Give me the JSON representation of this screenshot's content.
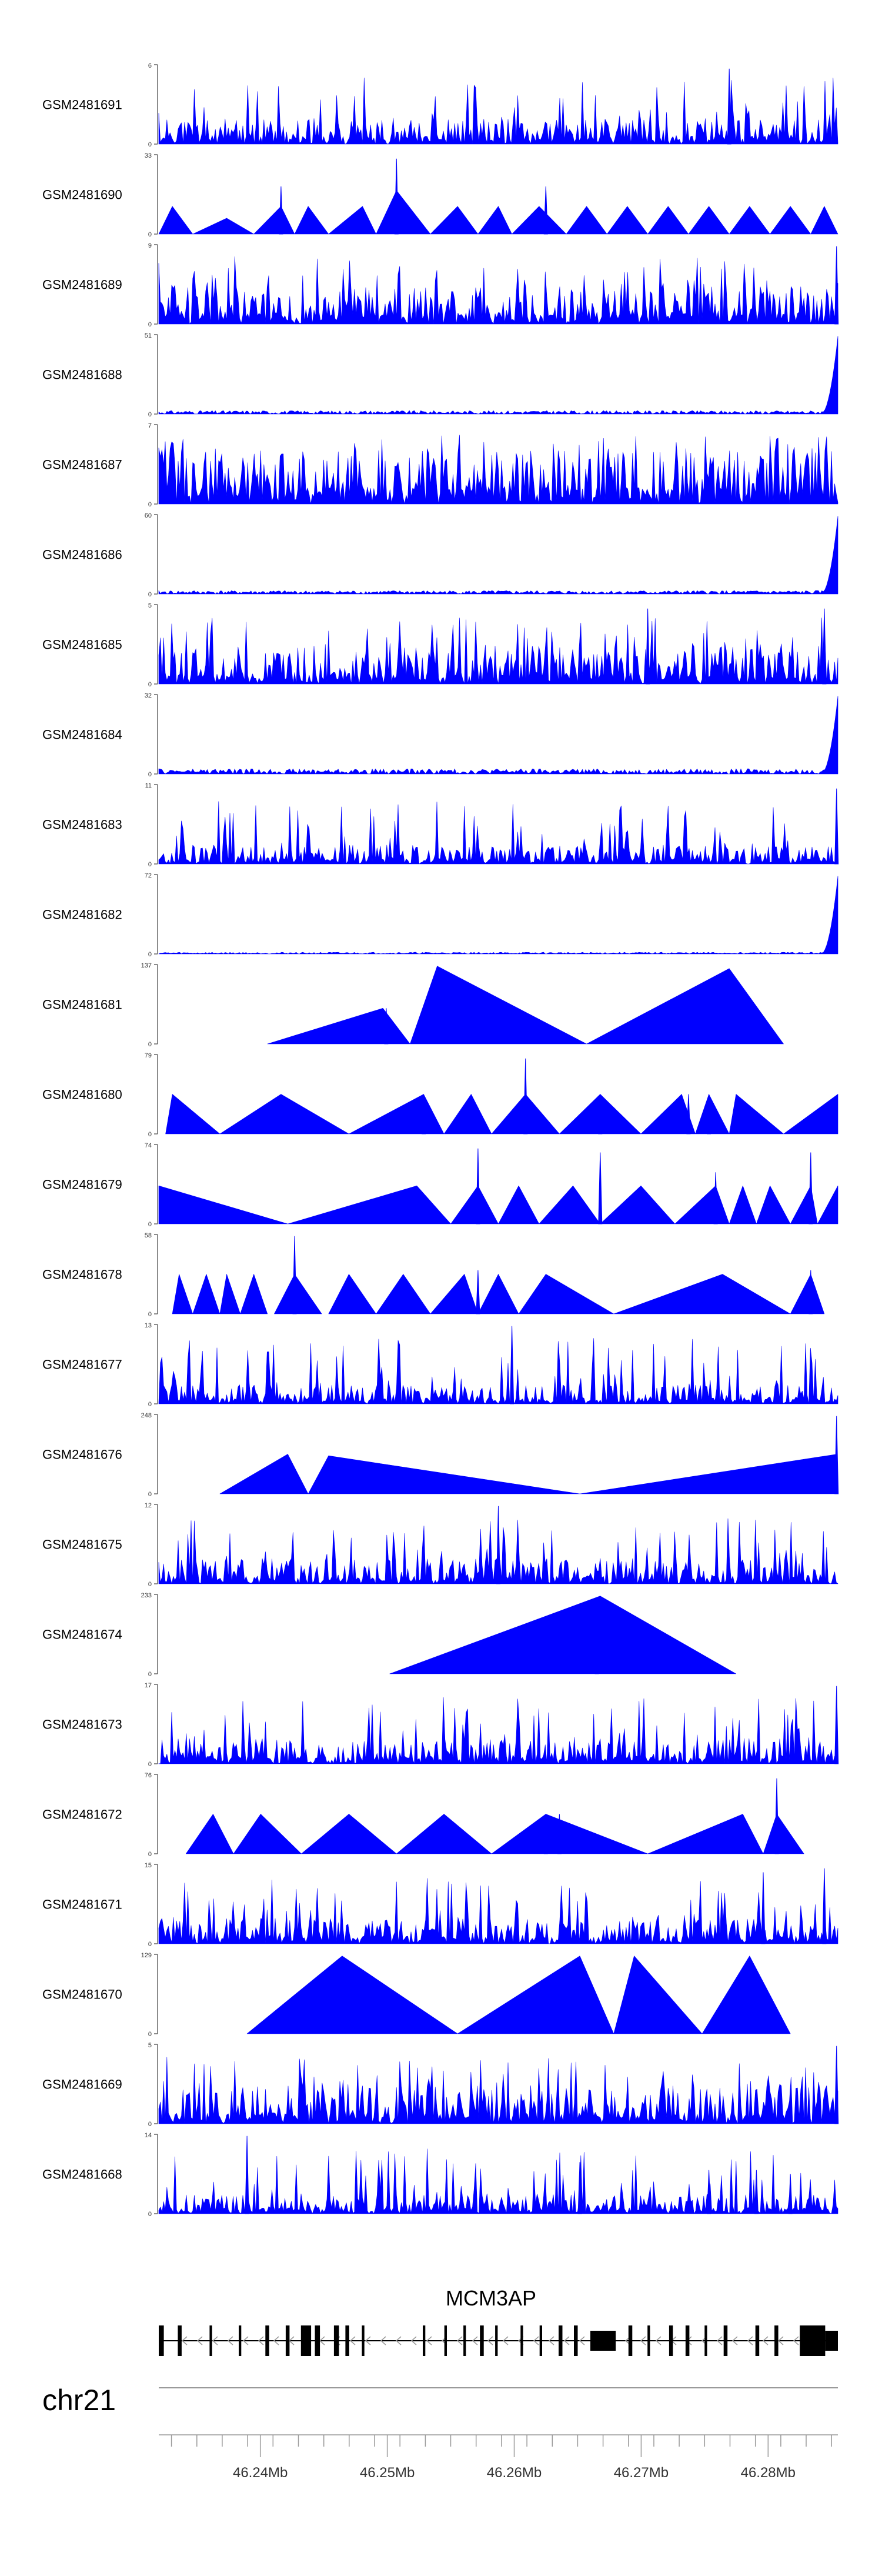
{
  "chart_data": {
    "type": "area",
    "title": "",
    "chromosome": "chr21",
    "gene": "MCM3AP",
    "x_range_mb": [
      46.232,
      46.2855
    ],
    "x_ticks": [
      {
        "value": 46.24,
        "label": "46.24Mb"
      },
      {
        "value": 46.25,
        "label": "46.25Mb"
      },
      {
        "value": 46.26,
        "label": "46.26Mb"
      },
      {
        "value": 46.27,
        "label": "46.27Mb"
      },
      {
        "value": 46.28,
        "label": "46.28Mb"
      }
    ],
    "fill_color": "#0000ff",
    "tracks": [
      {
        "name": "GSM2481691",
        "ymax": "6",
        "ymin": "0",
        "pattern": "noise",
        "mean": 0.2,
        "seed": 11,
        "spikes": [
          [
            0.84,
            0.95
          ]
        ]
      },
      {
        "name": "GSM2481690",
        "ymax": "33",
        "ymin": "0",
        "pattern": "tri",
        "peaks": [
          [
            0.0,
            0.02,
            0.05,
            0.35
          ],
          [
            0.05,
            0.1,
            0.14,
            0.2
          ],
          [
            0.14,
            0.18,
            0.2,
            0.35
          ],
          [
            0.2,
            0.22,
            0.25,
            0.35
          ],
          [
            0.25,
            0.3,
            0.32,
            0.35
          ],
          [
            0.32,
            0.35,
            0.4,
            0.55
          ],
          [
            0.4,
            0.44,
            0.47,
            0.35
          ],
          [
            0.47,
            0.5,
            0.52,
            0.35
          ],
          [
            0.52,
            0.56,
            0.6,
            0.35
          ],
          [
            0.6,
            0.63,
            0.66,
            0.35
          ],
          [
            0.66,
            0.69,
            0.72,
            0.35
          ],
          [
            0.72,
            0.75,
            0.78,
            0.35
          ],
          [
            0.78,
            0.81,
            0.84,
            0.35
          ],
          [
            0.84,
            0.87,
            0.9,
            0.35
          ],
          [
            0.9,
            0.93,
            0.96,
            0.35
          ],
          [
            0.96,
            0.98,
            1.0,
            0.35
          ]
        ],
        "spikes": [
          [
            0.18,
            0.6
          ],
          [
            0.35,
            0.95
          ],
          [
            0.57,
            0.6
          ]
        ]
      },
      {
        "name": "GSM2481689",
        "ymax": "9",
        "ymin": "0",
        "pattern": "noise",
        "mean": 0.3,
        "seed": 23,
        "spikes": [
          [
            0.998,
            0.98
          ]
        ]
      },
      {
        "name": "GSM2481688",
        "ymax": "51",
        "ymin": "0",
        "pattern": "ramp",
        "mean": 0.02,
        "seed": 31
      },
      {
        "name": "GSM2481687",
        "ymax": "7",
        "ymin": "0",
        "pattern": "noise",
        "mean": 0.45,
        "seed": 37,
        "spikes": []
      },
      {
        "name": "GSM2481686",
        "ymax": "60",
        "ymin": "0",
        "pattern": "ramp",
        "mean": 0.02,
        "seed": 41
      },
      {
        "name": "GSM2481685",
        "ymax": "5",
        "ymin": "0",
        "pattern": "noise",
        "mean": 0.3,
        "seed": 43,
        "spikes": [
          [
            0.72,
            0.95
          ],
          [
            0.98,
            0.95
          ]
        ]
      },
      {
        "name": "GSM2481684",
        "ymax": "32",
        "ymin": "0",
        "pattern": "ramp",
        "mean": 0.03,
        "seed": 47
      },
      {
        "name": "GSM2481683",
        "ymax": "11",
        "ymin": "0",
        "pattern": "noise",
        "mean": 0.15,
        "seed": 53,
        "spikes": [
          [
            0.998,
            0.95
          ]
        ]
      },
      {
        "name": "GSM2481682",
        "ymax": "72",
        "ymin": "0",
        "pattern": "ramp",
        "mean": 0.01,
        "seed": 59
      },
      {
        "name": "GSM2481681",
        "ymax": "137",
        "ymin": "0",
        "pattern": "tri",
        "peaks": [
          [
            0.16,
            0.33,
            0.37,
            0.45
          ],
          [
            0.37,
            0.41,
            0.63,
            0.98
          ],
          [
            0.63,
            0.84,
            0.92,
            0.95
          ]
        ],
        "spikes": [
          [
            0.335,
            0.45
          ]
        ]
      },
      {
        "name": "GSM2481680",
        "ymax": "79",
        "ymin": "0",
        "pattern": "tri",
        "peaks": [
          [
            0.01,
            0.02,
            0.09,
            0.5
          ],
          [
            0.09,
            0.18,
            0.28,
            0.5
          ],
          [
            0.28,
            0.39,
            0.42,
            0.5
          ],
          [
            0.42,
            0.46,
            0.49,
            0.5
          ],
          [
            0.49,
            0.54,
            0.59,
            0.5
          ],
          [
            0.59,
            0.65,
            0.71,
            0.5
          ],
          [
            0.71,
            0.77,
            0.79,
            0.5
          ],
          [
            0.79,
            0.81,
            0.84,
            0.5
          ],
          [
            0.84,
            0.85,
            0.92,
            0.5
          ],
          [
            0.92,
            1.0,
            1.0,
            0.5
          ]
        ],
        "spikes": [
          [
            0.39,
            0.45
          ],
          [
            0.54,
            0.95
          ],
          [
            0.65,
            0.45
          ],
          [
            0.78,
            0.5
          ],
          [
            0.81,
            0.5
          ]
        ]
      },
      {
        "name": "GSM2481679",
        "ymax": "74",
        "ymin": "0",
        "pattern": "tri",
        "peaks": [
          [
            0.0,
            0.0,
            0.19,
            0.48
          ],
          [
            0.19,
            0.38,
            0.43,
            0.48
          ],
          [
            0.43,
            0.47,
            0.5,
            0.48
          ],
          [
            0.5,
            0.53,
            0.56,
            0.48
          ],
          [
            0.56,
            0.61,
            0.65,
            0.48
          ],
          [
            0.65,
            0.71,
            0.76,
            0.48
          ],
          [
            0.76,
            0.82,
            0.84,
            0.48
          ],
          [
            0.84,
            0.86,
            0.88,
            0.48
          ],
          [
            0.88,
            0.9,
            0.93,
            0.48
          ],
          [
            0.93,
            0.96,
            0.97,
            0.48
          ],
          [
            0.97,
            1.0,
            1.0,
            0.48
          ]
        ],
        "spikes": [
          [
            0.47,
            0.95
          ],
          [
            0.65,
            0.9
          ],
          [
            0.82,
            0.65
          ],
          [
            0.96,
            0.9
          ]
        ]
      },
      {
        "name": "GSM2481678",
        "ymax": "58",
        "ymin": "0",
        "pattern": "tri",
        "peaks": [
          [
            0.02,
            0.03,
            0.05,
            0.5
          ],
          [
            0.05,
            0.07,
            0.09,
            0.5
          ],
          [
            0.09,
            0.1,
            0.12,
            0.5
          ],
          [
            0.12,
            0.14,
            0.16,
            0.5
          ],
          [
            0.17,
            0.2,
            0.24,
            0.5
          ],
          [
            0.25,
            0.28,
            0.32,
            0.5
          ],
          [
            0.32,
            0.36,
            0.4,
            0.5
          ],
          [
            0.4,
            0.45,
            0.47,
            0.5
          ],
          [
            0.47,
            0.5,
            0.53,
            0.5
          ],
          [
            0.53,
            0.57,
            0.67,
            0.5
          ],
          [
            0.67,
            0.83,
            0.93,
            0.5
          ],
          [
            0.93,
            0.96,
            0.98,
            0.5
          ]
        ],
        "spikes": [
          [
            0.2,
            0.98
          ],
          [
            0.47,
            0.55
          ],
          [
            0.96,
            0.55
          ]
        ]
      },
      {
        "name": "GSM2481677",
        "ymax": "13",
        "ymin": "0",
        "pattern": "noise",
        "mean": 0.15,
        "seed": 61,
        "spikes": [
          [
            0.52,
            0.98
          ]
        ]
      },
      {
        "name": "GSM2481676",
        "ymax": "248",
        "ymin": "0",
        "pattern": "tri",
        "peaks": [
          [
            0.09,
            0.19,
            0.22,
            0.5
          ],
          [
            0.22,
            0.25,
            0.62,
            0.48
          ],
          [
            0.62,
            0.999,
            1.0,
            0.5
          ]
        ],
        "spikes": [
          [
            0.998,
            0.98
          ]
        ]
      },
      {
        "name": "GSM2481675",
        "ymax": "12",
        "ymin": "0",
        "pattern": "noise",
        "mean": 0.2,
        "seed": 67,
        "spikes": [
          [
            0.5,
            0.98
          ]
        ]
      },
      {
        "name": "GSM2481674",
        "ymax": "233",
        "ymin": "0",
        "pattern": "tri",
        "peaks": [
          [
            0.34,
            0.65,
            0.85,
            0.98
          ]
        ],
        "spikes": [
          [
            0.645,
            0.3
          ]
        ]
      },
      {
        "name": "GSM2481673",
        "ymax": "17",
        "ymin": "0",
        "pattern": "noise",
        "mean": 0.2,
        "seed": 71,
        "spikes": [
          [
            0.998,
            0.98
          ]
        ]
      },
      {
        "name": "GSM2481672",
        "ymax": "76",
        "ymin": "0",
        "pattern": "tri",
        "peaks": [
          [
            0.04,
            0.08,
            0.11,
            0.5
          ],
          [
            0.11,
            0.15,
            0.21,
            0.5
          ],
          [
            0.21,
            0.28,
            0.35,
            0.5
          ],
          [
            0.35,
            0.42,
            0.49,
            0.5
          ],
          [
            0.49,
            0.57,
            0.72,
            0.5
          ],
          [
            0.72,
            0.86,
            0.89,
            0.5
          ],
          [
            0.89,
            0.91,
            0.95,
            0.5
          ]
        ],
        "spikes": [
          [
            0.57,
            0.5
          ],
          [
            0.59,
            0.5
          ],
          [
            0.91,
            0.95
          ]
        ]
      },
      {
        "name": "GSM2481671",
        "ymax": "15",
        "ymin": "0",
        "pattern": "noise",
        "mean": 0.2,
        "seed": 73,
        "spikes": [
          [
            0.89,
            0.9
          ],
          [
            0.98,
            0.95
          ]
        ]
      },
      {
        "name": "GSM2481670",
        "ymax": "129",
        "ymin": "0",
        "pattern": "tri",
        "peaks": [
          [
            0.13,
            0.27,
            0.44,
            0.98
          ],
          [
            0.44,
            0.62,
            0.67,
            0.98
          ],
          [
            0.67,
            0.7,
            0.8,
            0.98
          ],
          [
            0.8,
            0.87,
            0.93,
            0.98
          ]
        ],
        "spikes": []
      },
      {
        "name": "GSM2481669",
        "ymax": "5",
        "ymin": "0",
        "pattern": "noise",
        "mean": 0.3,
        "seed": 79,
        "spikes": [
          [
            0.998,
            0.98
          ]
        ]
      },
      {
        "name": "GSM2481668",
        "ymax": "14",
        "ymin": "0",
        "pattern": "noise",
        "mean": 0.15,
        "seed": 83,
        "spikes": [
          [
            0.13,
            0.98
          ],
          [
            0.62,
            0.65
          ],
          [
            0.81,
            0.55
          ],
          [
            0.88,
            0.55
          ],
          [
            0.93,
            0.5
          ]
        ]
      }
    ],
    "exons": [
      {
        "start": 46.232,
        "end": 46.2324,
        "tall": true
      },
      {
        "start": 46.2335,
        "end": 46.2338,
        "tall": true
      },
      {
        "start": 46.236,
        "end": 46.2362,
        "tall": true
      },
      {
        "start": 46.2383,
        "end": 46.2385,
        "tall": true
      },
      {
        "start": 46.2404,
        "end": 46.2407,
        "tall": true
      },
      {
        "start": 46.242,
        "end": 46.2423,
        "tall": true
      },
      {
        "start": 46.2432,
        "end": 46.244,
        "tall": true
      },
      {
        "start": 46.2443,
        "end": 46.2447,
        "tall": true
      },
      {
        "start": 46.2458,
        "end": 46.2462,
        "tall": true
      },
      {
        "start": 46.2467,
        "end": 46.247,
        "tall": true
      },
      {
        "start": 46.248,
        "end": 46.2482,
        "tall": true
      },
      {
        "start": 46.2528,
        "end": 46.253,
        "tall": true
      },
      {
        "start": 46.2545,
        "end": 46.2547,
        "tall": true
      },
      {
        "start": 46.256,
        "end": 46.2562,
        "tall": true
      },
      {
        "start": 46.2573,
        "end": 46.2576,
        "tall": true
      },
      {
        "start": 46.2585,
        "end": 46.2587,
        "tall": true
      },
      {
        "start": 46.2605,
        "end": 46.2607,
        "tall": true
      },
      {
        "start": 46.262,
        "end": 46.2622,
        "tall": true
      },
      {
        "start": 46.2635,
        "end": 46.2638,
        "tall": true
      },
      {
        "start": 46.2647,
        "end": 46.265,
        "tall": true
      },
      {
        "start": 46.266,
        "end": 46.268,
        "tall": false
      },
      {
        "start": 46.269,
        "end": 46.2693,
        "tall": true
      },
      {
        "start": 46.2705,
        "end": 46.2707,
        "tall": true
      },
      {
        "start": 46.2722,
        "end": 46.2725,
        "tall": true
      },
      {
        "start": 46.2735,
        "end": 46.2738,
        "tall": true
      },
      {
        "start": 46.275,
        "end": 46.2752,
        "tall": true
      },
      {
        "start": 46.2765,
        "end": 46.2768,
        "tall": true
      },
      {
        "start": 46.279,
        "end": 46.2793,
        "tall": true
      },
      {
        "start": 46.2805,
        "end": 46.2808,
        "tall": true
      },
      {
        "start": 46.2825,
        "end": 46.2845,
        "tall": true
      },
      {
        "start": 46.2845,
        "end": 46.2855,
        "tall": false
      }
    ]
  }
}
